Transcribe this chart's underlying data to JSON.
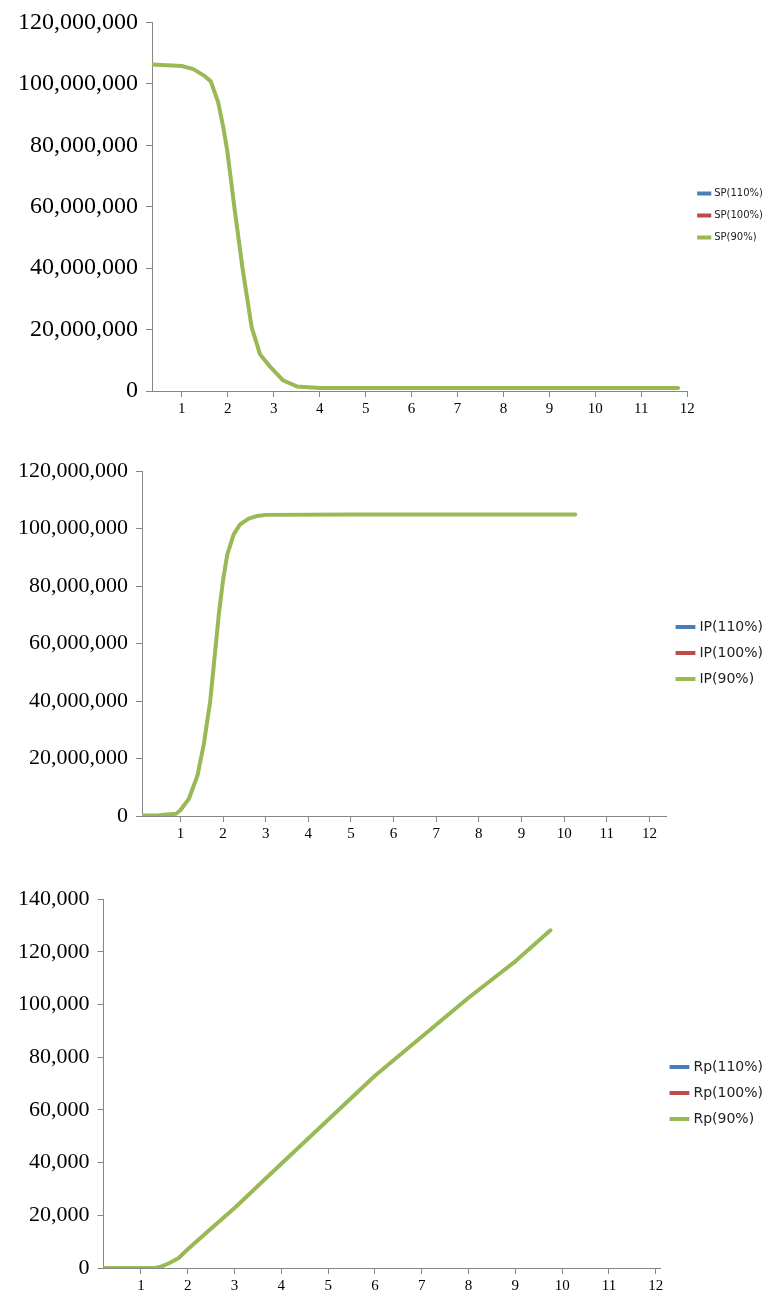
{
  "chart_data": [
    {
      "type": "line",
      "marker": "none",
      "grid": false,
      "legend": "right",
      "x": [
        0.35,
        1,
        1.25,
        1.5,
        1.63,
        1.79,
        1.9,
        1.99,
        2.15,
        2.32,
        2.52,
        2.7,
        2.92,
        3.2,
        3.5,
        4,
        6,
        8,
        10,
        11.8
      ],
      "series": [
        {
          "name": "SP(110%)",
          "color": "#4a7ebb",
          "values": [
            null,
            null,
            null,
            null,
            null,
            null,
            null,
            null,
            null,
            null,
            null,
            null,
            null,
            null,
            null,
            null,
            null,
            null,
            null,
            null
          ]
        },
        {
          "name": "SP(100%)",
          "color": "#be4b48",
          "values": [
            null,
            null,
            null,
            null,
            null,
            null,
            null,
            null,
            null,
            null,
            null,
            null,
            null,
            null,
            null,
            null,
            null,
            null,
            null,
            null
          ]
        },
        {
          "name": "SP(90%)",
          "color": "#98b954",
          "values": [
            106300000,
            105800000,
            104800000,
            102500000,
            100800000,
            94000000,
            86000000,
            78000000,
            59000000,
            40000000,
            20700000,
            12000000,
            7900000,
            3500000,
            1500000,
            1000000,
            1000000,
            1000000,
            1000000,
            1000000
          ]
        }
      ],
      "xlim": [
        0.35,
        12
      ],
      "xticks": [
        1,
        2,
        3,
        4,
        5,
        6,
        7,
        8,
        9,
        10,
        11,
        12
      ],
      "ylim": [
        0,
        120000000
      ],
      "yticks": [
        {
          "value": 0,
          "label": "0"
        },
        {
          "value": 20000000,
          "label": "20,000,000"
        },
        {
          "value": 40000000,
          "label": "40,000,000"
        },
        {
          "value": 60000000,
          "label": "60,000,000"
        },
        {
          "value": 80000000,
          "label": "80,000,000"
        },
        {
          "value": 100000000,
          "label": "100,000,000"
        },
        {
          "value": 120000000,
          "label": "120,000,000"
        }
      ]
    },
    {
      "type": "line",
      "marker": "none",
      "grid": false,
      "legend": "right",
      "x": [
        0.1,
        0.5,
        0.9,
        1,
        1.2,
        1.4,
        1.55,
        1.7,
        1.8,
        1.9,
        2,
        2.1,
        2.25,
        2.4,
        2.6,
        2.8,
        3,
        5,
        8,
        10.26
      ],
      "series": [
        {
          "name": "IP(110%)",
          "color": "#4a7ebb",
          "values": [
            null,
            null,
            null,
            null,
            null,
            null,
            null,
            null,
            null,
            null,
            null,
            null,
            null,
            null,
            null,
            null,
            null,
            null,
            null,
            null
          ]
        },
        {
          "name": "IP(100%)",
          "color": "#be4b48",
          "values": [
            null,
            null,
            null,
            null,
            null,
            null,
            null,
            null,
            null,
            null,
            null,
            null,
            null,
            null,
            null,
            null,
            null,
            null,
            null,
            null
          ]
        },
        {
          "name": "IP(90%)",
          "color": "#98b954",
          "values": [
            200000,
            300000,
            800000,
            2000000,
            6000000,
            14000000,
            25000000,
            40000000,
            55000000,
            70000000,
            82000000,
            91000000,
            98000000,
            101500000,
            103500000,
            104400000,
            104800000,
            104900000,
            104900000,
            104900000
          ]
        }
      ],
      "xlim": [
        0.1,
        12.4
      ],
      "xticks": [
        1,
        2,
        3,
        4,
        5,
        6,
        7,
        8,
        9,
        10,
        11,
        12
      ],
      "ylim": [
        0,
        120000000
      ],
      "yticks": [
        {
          "value": 0,
          "label": "0"
        },
        {
          "value": 20000000,
          "label": "20,000,000"
        },
        {
          "value": 40000000,
          "label": "40,000,000"
        },
        {
          "value": 60000000,
          "label": "60,000,000"
        },
        {
          "value": 80000000,
          "label": "80,000,000"
        },
        {
          "value": 100000000,
          "label": "100,000,000"
        },
        {
          "value": 120000000,
          "label": "120,000,000"
        }
      ]
    },
    {
      "type": "line",
      "marker": "none",
      "grid": false,
      "legend": "right",
      "x": [
        0.2,
        1.3,
        1.43,
        1.6,
        1.8,
        2,
        2.5,
        3,
        4,
        5,
        6,
        7,
        8,
        9,
        9.75
      ],
      "series": [
        {
          "name": "Rp(110%)",
          "color": "#4a7ebb",
          "values": [
            null,
            null,
            null,
            null,
            null,
            null,
            null,
            null,
            null,
            null,
            null,
            null,
            null,
            null,
            null
          ]
        },
        {
          "name": "Rp(100%)",
          "color": "#be4b48",
          "values": [
            null,
            null,
            null,
            null,
            null,
            null,
            null,
            null,
            null,
            null,
            null,
            null,
            null,
            null,
            null
          ]
        },
        {
          "name": "Rp(90%)",
          "color": "#98b954",
          "values": [
            0,
            0,
            500,
            1800,
            3700,
            7100,
            15000,
            22800,
            39600,
            56300,
            73000,
            87800,
            102600,
            116400,
            128200
          ]
        }
      ],
      "xlim": [
        0.2,
        12.1
      ],
      "xticks": [
        1,
        2,
        3,
        4,
        5,
        6,
        7,
        8,
        9,
        10,
        11,
        12
      ],
      "ylim": [
        0,
        140000
      ],
      "yticks": [
        {
          "value": 0,
          "label": "0"
        },
        {
          "value": 20000,
          "label": "20,000"
        },
        {
          "value": 40000,
          "label": "40,000"
        },
        {
          "value": 60000,
          "label": "60,000"
        },
        {
          "value": 80000,
          "label": "80,000"
        },
        {
          "value": 100000,
          "label": "100,000"
        },
        {
          "value": 120000,
          "label": "120,000"
        },
        {
          "value": 140000,
          "label": "140,000"
        }
      ]
    }
  ]
}
